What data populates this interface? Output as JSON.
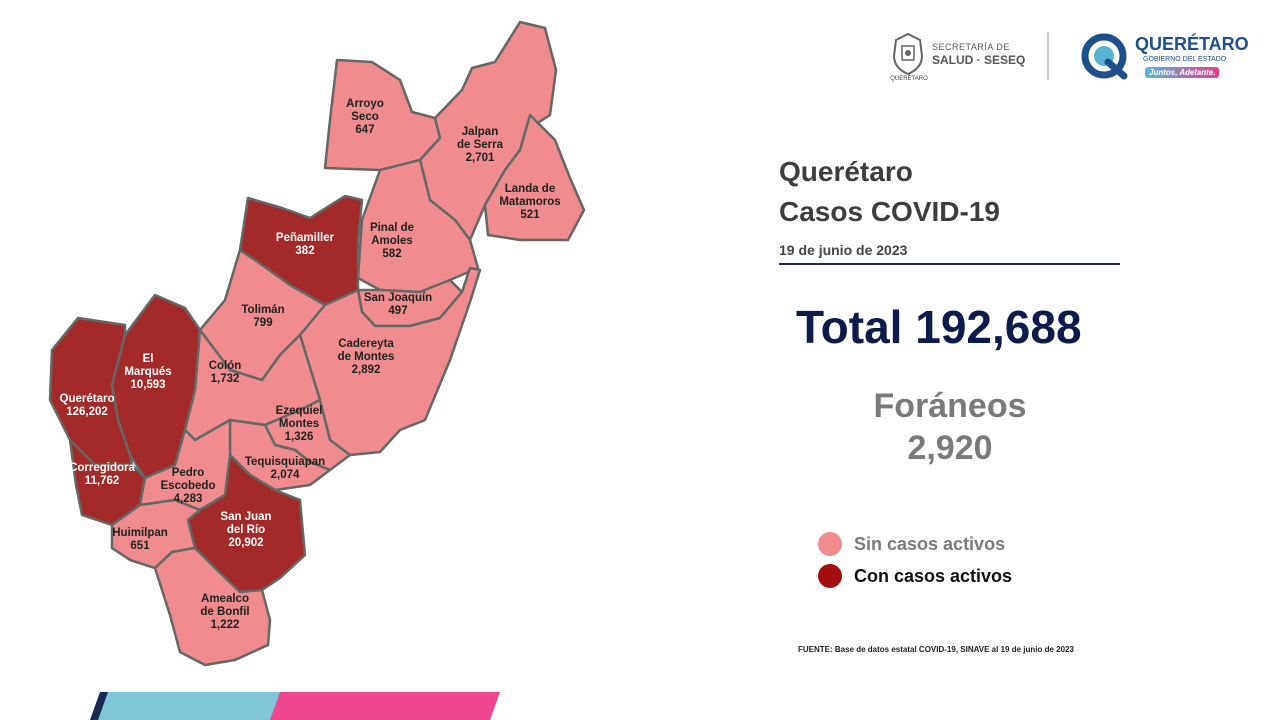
{
  "title": {
    "line1": "Querétaro",
    "line2": "Casos COVID-19"
  },
  "date": "19 de junio de 2023",
  "total": "Total 192,688",
  "foraneos": {
    "label": "Foráneos",
    "value": "2,920"
  },
  "legend": {
    "inactive": "Sin casos activos",
    "active": "Con casos activos"
  },
  "source": "FUENTE: Base de datos estatal COVID-19, SINAVE  al 19 de junio de 2023",
  "colors": {
    "inactive": "#f08c8f",
    "active": "#a32a2a",
    "total": "#0d1b4c"
  },
  "logos": {
    "seal_caption": "QUERÉTARO",
    "ssa_line1": "SECRETARÍA DE",
    "ssa_line2": "SALUD · SESEQ",
    "qro_name": "QUERÉTARO",
    "qro_sub": "GOBIERNO DEL ESTADO",
    "qro_slogan": "Juntos, Adelante."
  },
  "municipalities": [
    {
      "id": "arroyo-seco",
      "name_lines": [
        "Arroyo",
        "Seco"
      ],
      "cases": "647",
      "status": "inactive"
    },
    {
      "id": "jalpan",
      "name_lines": [
        "Jalpan",
        "de Serra"
      ],
      "cases": "2,701",
      "status": "inactive"
    },
    {
      "id": "landa",
      "name_lines": [
        "Landa de",
        "Matamoros"
      ],
      "cases": "521",
      "status": "inactive"
    },
    {
      "id": "pinal",
      "name_lines": [
        "Pinal de",
        "Amoles"
      ],
      "cases": "582",
      "status": "inactive"
    },
    {
      "id": "penamiller",
      "name_lines": [
        "Peñamiller"
      ],
      "cases": "382",
      "status": "active"
    },
    {
      "id": "san-joaquin",
      "name_lines": [
        "San Joaquín"
      ],
      "cases": "497",
      "status": "inactive"
    },
    {
      "id": "toliman",
      "name_lines": [
        "Tolimán"
      ],
      "cases": "799",
      "status": "inactive"
    },
    {
      "id": "cadereyta",
      "name_lines": [
        "Cadereyta",
        "de Montes"
      ],
      "cases": "2,892",
      "status": "inactive"
    },
    {
      "id": "el-marques",
      "name_lines": [
        "El",
        "Marqués"
      ],
      "cases": "10,593",
      "status": "active"
    },
    {
      "id": "colon",
      "name_lines": [
        "Colón"
      ],
      "cases": "1,732",
      "status": "inactive"
    },
    {
      "id": "queretaro",
      "name_lines": [
        "Querétaro"
      ],
      "cases": "126,202",
      "status": "active"
    },
    {
      "id": "ezequiel",
      "name_lines": [
        "Ezequiel",
        "Montes"
      ],
      "cases": "1,326",
      "status": "inactive"
    },
    {
      "id": "tequisquiapan",
      "name_lines": [
        "Tequisquiapan"
      ],
      "cases": "2,074",
      "status": "inactive"
    },
    {
      "id": "corregidora",
      "name_lines": [
        "Corregidora"
      ],
      "cases": "11,762",
      "status": "active"
    },
    {
      "id": "pedro-escobedo",
      "name_lines": [
        "Pedro",
        "Escobedo"
      ],
      "cases": "4,283",
      "status": "inactive"
    },
    {
      "id": "san-juan",
      "name_lines": [
        "San Juan",
        "del Río"
      ],
      "cases": "20,902",
      "status": "active"
    },
    {
      "id": "huimilpan",
      "name_lines": [
        "Huimilpan"
      ],
      "cases": "651",
      "status": "inactive"
    },
    {
      "id": "amealco",
      "name_lines": [
        "Amealco",
        "de Bonfil"
      ],
      "cases": "1,222",
      "status": "inactive"
    }
  ]
}
